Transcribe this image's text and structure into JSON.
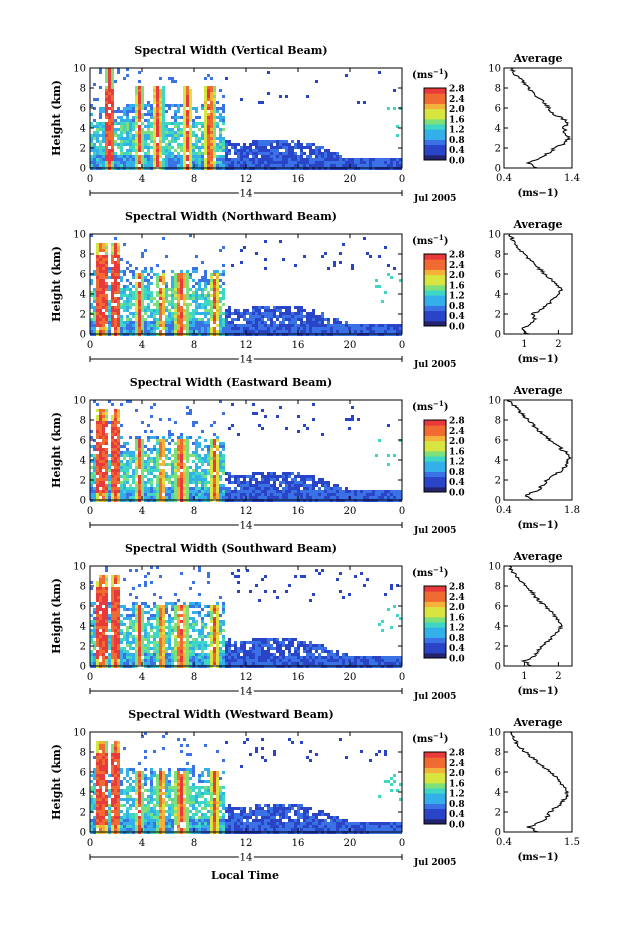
{
  "figure": {
    "date_label": "Jul 2005",
    "xlabel": "Local Time",
    "ylabel": "Height (km)",
    "colorbar_unit": "(ms",
    "colorbar_unit_exp": "−1",
    "colorbar_unit_close": ")",
    "colorbar_ticks": [
      "0.0",
      "0.4",
      "0.8",
      "1.2",
      "1.6",
      "2.0",
      "2.4",
      "2.8"
    ],
    "colormap": [
      "#24246e",
      "#2a44c8",
      "#3a72e6",
      "#33b0ea",
      "#3ed6c4",
      "#7ee07a",
      "#d8e440",
      "#f4b23a",
      "#f06a32",
      "#e83a3a"
    ],
    "mask_color": "#ffffff"
  },
  "chart_data": [
    {
      "type": "heatmap",
      "title": "Spectral Width (Vertical Beam)",
      "xlabel": "Local Time",
      "ylabel": "Height (km)",
      "x_ticks": [
        "0",
        "4",
        "8",
        "12",
        "16",
        "20",
        "0"
      ],
      "x_date_tick": "14",
      "xlim_hours": [
        0,
        24
      ],
      "y_ticks": [
        "0",
        "2",
        "4",
        "6",
        "8",
        "10"
      ],
      "ylim_km": [
        0,
        10
      ],
      "colorbar_range_ms": [
        0.0,
        2.8
      ],
      "convective_cells_hours": [
        1.5,
        3.8,
        5.2,
        7.5,
        9.2
      ],
      "average_profile": {
        "title": "Average",
        "xlabel": "(ms−1)",
        "x_ticks": [
          "0.4",
          "1.4"
        ],
        "xlim": [
          0.4,
          1.4
        ],
        "height_km": [
          0,
          0.5,
          1,
          1.5,
          2,
          2.5,
          3,
          3.5,
          4,
          4.5,
          5,
          5.5,
          6,
          6.5,
          7,
          7.5,
          8,
          8.5,
          9,
          9.5,
          10
        ],
        "values": [
          0.9,
          0.75,
          0.95,
          1.05,
          1.15,
          1.3,
          1.35,
          1.3,
          1.28,
          1.35,
          1.25,
          1.1,
          1.05,
          1.0,
          0.9,
          0.85,
          0.75,
          0.7,
          0.62,
          0.55,
          0.5
        ]
      }
    },
    {
      "type": "heatmap",
      "title": "Spectral Width (Northward Beam)",
      "xlabel": "Local Time",
      "ylabel": "Height (km)",
      "x_ticks": [
        "0",
        "4",
        "8",
        "12",
        "16",
        "20",
        "0"
      ],
      "x_date_tick": "14",
      "xlim_hours": [
        0,
        24
      ],
      "y_ticks": [
        "0",
        "2",
        "4",
        "6",
        "8",
        "10"
      ],
      "ylim_km": [
        0,
        10
      ],
      "colorbar_range_ms": [
        0.0,
        2.8
      ],
      "convective_cells_hours": [
        0.9,
        2.0,
        3.8,
        5.5,
        7.0,
        9.6
      ],
      "average_profile": {
        "title": "Average",
        "xlabel": "(ms−1)",
        "x_ticks": [
          "1",
          "2"
        ],
        "xlim": [
          0.4,
          2.4
        ],
        "height_km": [
          0,
          0.5,
          1,
          1.5,
          2,
          2.5,
          3,
          3.5,
          4,
          4.5,
          5,
          5.5,
          6,
          6.5,
          7,
          7.5,
          8,
          8.5,
          9,
          9.5,
          10
        ],
        "values": [
          1.1,
          0.9,
          1.2,
          1.3,
          1.25,
          1.5,
          1.7,
          1.85,
          2.0,
          2.1,
          1.95,
          1.8,
          1.6,
          1.45,
          1.3,
          1.15,
          1.0,
          0.85,
          0.75,
          0.65,
          0.55
        ]
      }
    },
    {
      "type": "heatmap",
      "title": "Spectral Width (Eastward Beam)",
      "xlabel": "Local Time",
      "ylabel": "Height (km)",
      "x_ticks": [
        "0",
        "4",
        "8",
        "12",
        "16",
        "20",
        "0"
      ],
      "x_date_tick": "14",
      "xlim_hours": [
        0,
        24
      ],
      "y_ticks": [
        "0",
        "2",
        "4",
        "6",
        "8",
        "10"
      ],
      "ylim_km": [
        0,
        10
      ],
      "colorbar_range_ms": [
        0.0,
        2.8
      ],
      "convective_cells_hours": [
        0.9,
        2.0,
        3.8,
        5.5,
        7.0,
        9.6
      ],
      "average_profile": {
        "title": "Average",
        "xlabel": "(ms−1)",
        "x_ticks": [
          "0.4",
          "1.8"
        ],
        "xlim": [
          0.4,
          1.8
        ],
        "height_km": [
          0,
          0.5,
          1,
          1.5,
          2,
          2.5,
          3,
          3.5,
          4,
          4.5,
          5,
          5.5,
          6,
          6.5,
          7,
          7.5,
          8,
          8.5,
          9,
          9.5,
          10
        ],
        "values": [
          1.0,
          0.85,
          1.1,
          1.2,
          1.3,
          1.45,
          1.6,
          1.7,
          1.72,
          1.75,
          1.6,
          1.5,
          1.35,
          1.25,
          1.1,
          1.0,
          0.9,
          0.8,
          0.7,
          0.6,
          0.5
        ]
      }
    },
    {
      "type": "heatmap",
      "title": "Spectral Width (Southward Beam)",
      "xlabel": "Local Time",
      "ylabel": "Height (km)",
      "x_ticks": [
        "0",
        "4",
        "8",
        "12",
        "16",
        "20",
        "0"
      ],
      "x_date_tick": "14",
      "xlim_hours": [
        0,
        24
      ],
      "y_ticks": [
        "0",
        "2",
        "4",
        "6",
        "8",
        "10"
      ],
      "ylim_km": [
        0,
        10
      ],
      "colorbar_range_ms": [
        0.0,
        2.8
      ],
      "convective_cells_hours": [
        0.9,
        2.0,
        3.8,
        5.5,
        7.0,
        9.6
      ],
      "average_profile": {
        "title": "Average",
        "xlabel": "(ms−1)",
        "x_ticks": [
          "1",
          "2"
        ],
        "xlim": [
          0.4,
          2.4
        ],
        "height_km": [
          0,
          0.5,
          1,
          1.5,
          2,
          2.5,
          3,
          3.5,
          4,
          4.5,
          5,
          5.5,
          6,
          6.5,
          7,
          7.5,
          8,
          8.5,
          9,
          9.5,
          10
        ],
        "values": [
          1.2,
          1.0,
          1.3,
          1.4,
          1.5,
          1.7,
          1.85,
          2.0,
          2.1,
          2.05,
          1.9,
          1.75,
          1.6,
          1.45,
          1.3,
          1.2,
          1.05,
          0.9,
          0.75,
          0.65,
          0.55
        ]
      }
    },
    {
      "type": "heatmap",
      "title": "Spectral Width (Westward Beam)",
      "xlabel": "Local Time",
      "ylabel": "Height (km)",
      "x_ticks": [
        "0",
        "4",
        "8",
        "12",
        "16",
        "20",
        "0"
      ],
      "x_date_tick": "14",
      "xlim_hours": [
        0,
        24
      ],
      "y_ticks": [
        "0",
        "2",
        "4",
        "6",
        "8",
        "10"
      ],
      "ylim_km": [
        0,
        10
      ],
      "colorbar_range_ms": [
        0.0,
        2.8
      ],
      "convective_cells_hours": [
        0.9,
        2.0,
        3.8,
        5.5,
        7.0,
        9.6
      ],
      "average_profile": {
        "title": "Average",
        "xlabel": "(ms−1)",
        "x_ticks": [
          "0.4",
          "1.5"
        ],
        "xlim": [
          0.4,
          1.5
        ],
        "height_km": [
          0,
          0.5,
          1,
          1.5,
          2,
          2.5,
          3,
          3.5,
          4,
          4.5,
          5,
          5.5,
          6,
          6.5,
          7,
          7.5,
          8,
          8.5,
          9,
          9.5,
          10
        ],
        "values": [
          0.95,
          0.8,
          1.0,
          1.1,
          1.15,
          1.25,
          1.35,
          1.4,
          1.42,
          1.38,
          1.3,
          1.25,
          1.15,
          1.05,
          0.95,
          0.85,
          0.75,
          0.65,
          0.6,
          0.55,
          0.5
        ]
      }
    }
  ]
}
